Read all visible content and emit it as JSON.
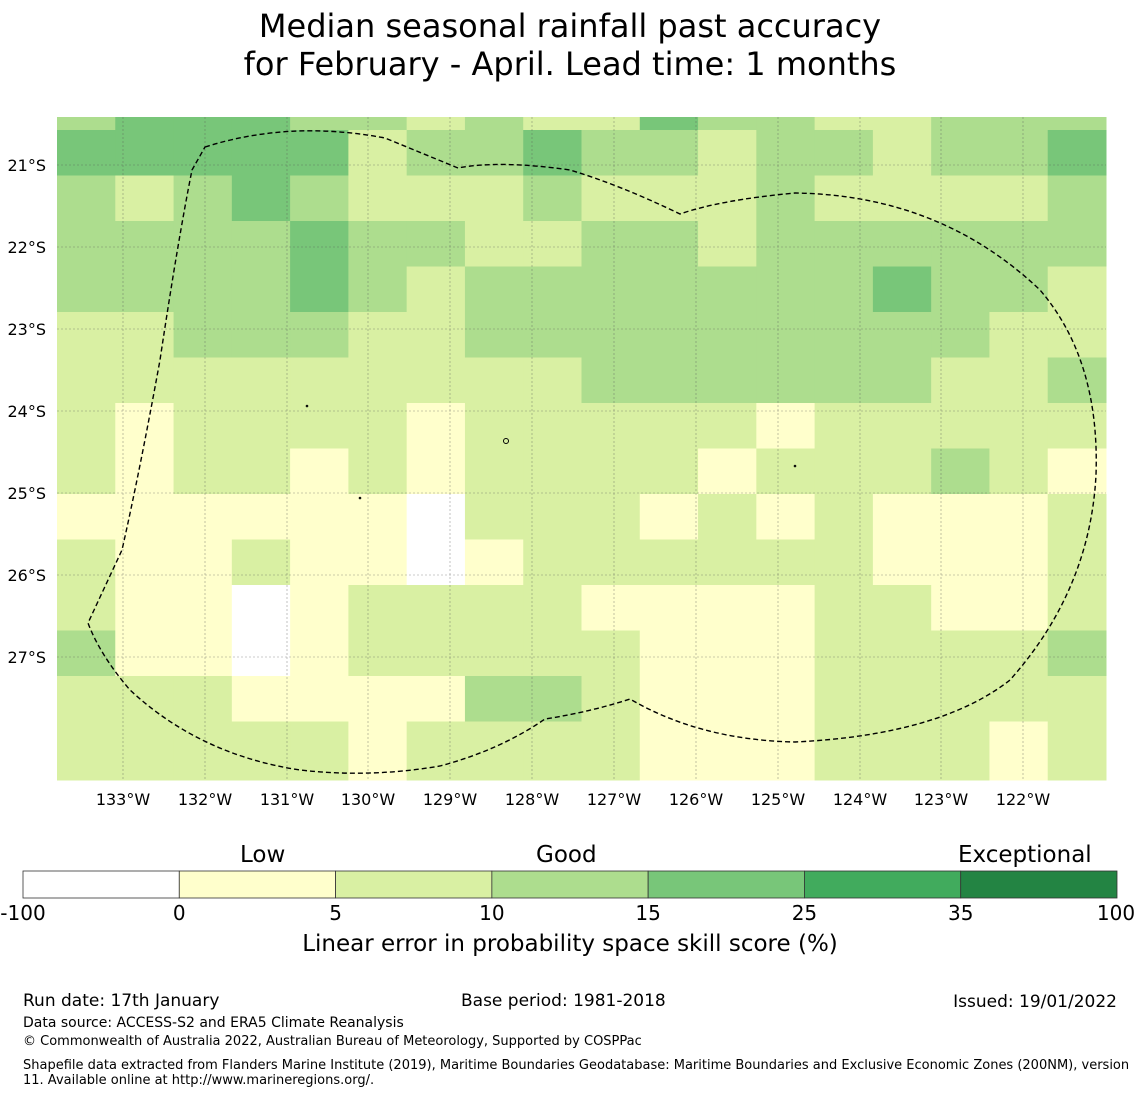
{
  "title": {
    "line1": "Median seasonal rainfall past accuracy",
    "line2": "for February - April. Lead time: 1 months"
  },
  "map": {
    "lat_labels": [
      "21°S",
      "22°S",
      "23°S",
      "24°S",
      "25°S",
      "26°S",
      "27°S"
    ],
    "lon_labels": [
      "133°W",
      "132°W",
      "131°W",
      "130°W",
      "129°W",
      "128°W",
      "127°W",
      "126°W",
      "125°W",
      "124°W",
      "123°W",
      "122°W"
    ],
    "lon_range": [
      "133.8°W",
      "121.0°W"
    ],
    "lat_range": [
      "20.6°S",
      "28.7°S"
    ],
    "grid_rows": [
      [
        2,
        3,
        3,
        3,
        2,
        2,
        1,
        2,
        1,
        1,
        3,
        2,
        2,
        1,
        1,
        2,
        2,
        2
      ],
      [
        3,
        3,
        3,
        3,
        3,
        1,
        2,
        2,
        3,
        2,
        2,
        1,
        2,
        2,
        1,
        2,
        2,
        3
      ],
      [
        2,
        1,
        2,
        3,
        2,
        1,
        1,
        1,
        2,
        1,
        1,
        1,
        2,
        1,
        1,
        1,
        1,
        2
      ],
      [
        2,
        2,
        2,
        2,
        3,
        2,
        2,
        1,
        1,
        2,
        2,
        1,
        2,
        2,
        2,
        2,
        2,
        2
      ],
      [
        2,
        2,
        2,
        2,
        3,
        2,
        1,
        2,
        2,
        2,
        2,
        2,
        2,
        2,
        3,
        2,
        2,
        1
      ],
      [
        1,
        1,
        2,
        2,
        2,
        1,
        1,
        2,
        2,
        2,
        2,
        2,
        2,
        2,
        2,
        2,
        1,
        1
      ],
      [
        1,
        1,
        1,
        1,
        1,
        1,
        1,
        1,
        1,
        2,
        2,
        2,
        2,
        2,
        2,
        1,
        1,
        2
      ],
      [
        1,
        0,
        1,
        1,
        1,
        1,
        0,
        1,
        1,
        1,
        1,
        1,
        0,
        1,
        1,
        1,
        1,
        1
      ],
      [
        1,
        0,
        1,
        1,
        0,
        1,
        0,
        1,
        1,
        1,
        1,
        0,
        1,
        1,
        1,
        2,
        1,
        0
      ],
      [
        0,
        0,
        0,
        0,
        0,
        0,
        -1,
        1,
        1,
        1,
        0,
        1,
        0,
        1,
        0,
        0,
        0,
        1
      ],
      [
        1,
        0,
        0,
        1,
        0,
        0,
        -1,
        0,
        1,
        1,
        1,
        1,
        1,
        1,
        0,
        0,
        0,
        1
      ],
      [
        1,
        0,
        0,
        -1,
        0,
        1,
        1,
        1,
        1,
        0,
        0,
        0,
        0,
        1,
        1,
        0,
        0,
        1
      ],
      [
        2,
        0,
        0,
        -1,
        0,
        1,
        1,
        1,
        1,
        1,
        0,
        0,
        0,
        1,
        1,
        1,
        1,
        2
      ],
      [
        1,
        1,
        1,
        0,
        0,
        0,
        0,
        2,
        2,
        1,
        0,
        0,
        0,
        1,
        1,
        1,
        1,
        1
      ],
      [
        1,
        1,
        1,
        1,
        1,
        0,
        1,
        1,
        1,
        1,
        0,
        0,
        0,
        1,
        1,
        1,
        0,
        1
      ],
      [
        1,
        1,
        1,
        1,
        1,
        0,
        1,
        1,
        1,
        1,
        0,
        0,
        0,
        1,
        1,
        1,
        0,
        1
      ]
    ]
  },
  "legend": {
    "captions": {
      "low": "Low",
      "good": "Good",
      "exceptional": "Exceptional"
    },
    "ticks": [
      "-100",
      "0",
      "5",
      "10",
      "15",
      "25",
      "35",
      "100"
    ],
    "colors": [
      "#ffffff",
      "#ffffcc",
      "#d9f0a3",
      "#addd8e",
      "#78c679",
      "#41ab5d",
      "#238443"
    ],
    "label": "Linear error in probability space skill score (%)"
  },
  "footer": {
    "run_date": "Run date: 17th January",
    "base_period": "Base period: 1981-2018",
    "issued": "Issued: 19/01/2022",
    "data_source": "Data source: ACCESS-S2 and ERA5 Climate Reanalysis",
    "copyright": "© Commonwealth of Australia 2022, Australian Bureau of Meteorology, Supported by COSPPac",
    "shapefile": "Shapefile data extracted from Flanders Marine Institute (2019), Maritime Boundaries Geodatabase: Maritime Boundaries and Exclusive Economic Zones (200NM), version 11. Available online at http://www.marineregions.org/."
  }
}
